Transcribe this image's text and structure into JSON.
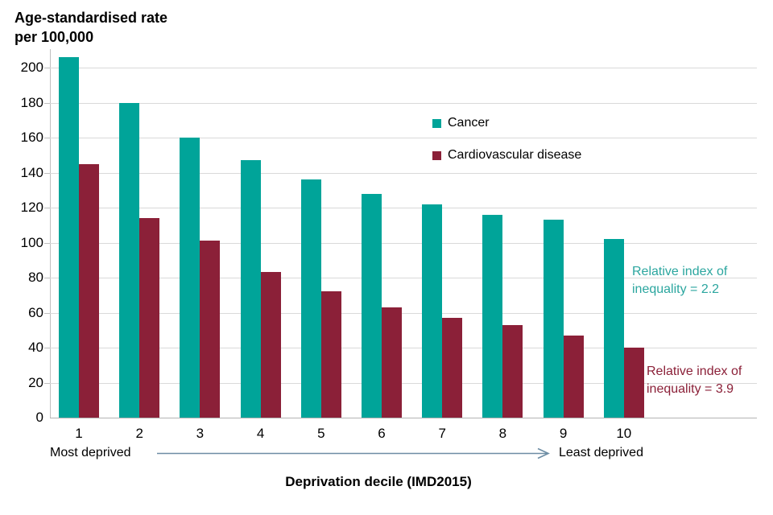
{
  "title": {
    "line1": "Age-standardised rate",
    "line2": "per 100,000"
  },
  "y_axis": {
    "ticks": [
      0,
      20,
      40,
      60,
      80,
      100,
      120,
      140,
      160,
      180,
      200
    ]
  },
  "x_axis": {
    "title": "Deprivation decile (IMD2015)",
    "left_note": "Most deprived",
    "right_note": "Least deprived"
  },
  "legend": {
    "items": [
      {
        "label": "Cancer",
        "color": "#00a499"
      },
      {
        "label": "Cardiovascular disease",
        "color": "#8b2038"
      }
    ]
  },
  "annotations": {
    "cancer": {
      "line1": "Relative index of",
      "line2": "inequality = 2.2",
      "color": "#2ba69f"
    },
    "cvd": {
      "line1": "Relative index of",
      "line2": "inequality = 3.9",
      "color": "#8b2038"
    }
  },
  "colors": {
    "cancer_bar": "#00a499",
    "cvd_bar": "#8b2038",
    "gridline": "#d9d9d9",
    "axis": "#bfbfbf",
    "arrow": "#6d8da4"
  },
  "chart_data": {
    "type": "bar",
    "title": "Age-standardised rate per 100,000",
    "xlabel": "Deprivation decile (IMD2015)",
    "ylabel": "Age-standardised rate per 100,000",
    "categories": [
      "1",
      "2",
      "3",
      "4",
      "5",
      "6",
      "7",
      "8",
      "9",
      "10"
    ],
    "series": [
      {
        "name": "Cancer",
        "color": "#00a499",
        "values": [
          206,
          180,
          160,
          147,
          136,
          128,
          122,
          116,
          113,
          102
        ]
      },
      {
        "name": "Cardiovascular disease",
        "color": "#8b2038",
        "values": [
          145,
          114,
          101,
          83,
          72,
          63,
          57,
          53,
          47,
          40
        ]
      }
    ],
    "ylim": [
      0,
      210
    ],
    "y_ticks": [
      0,
      20,
      40,
      60,
      80,
      100,
      120,
      140,
      160,
      180,
      200
    ],
    "grid": true,
    "legend_position": "inside-center-right",
    "x_range_notes": {
      "left": "Most deprived",
      "right": "Least deprived"
    },
    "annotations": [
      {
        "series": "Cancer",
        "text": "Relative index of inequality = 2.2"
      },
      {
        "series": "Cardiovascular disease",
        "text": "Relative index of inequality = 3.9"
      }
    ]
  }
}
